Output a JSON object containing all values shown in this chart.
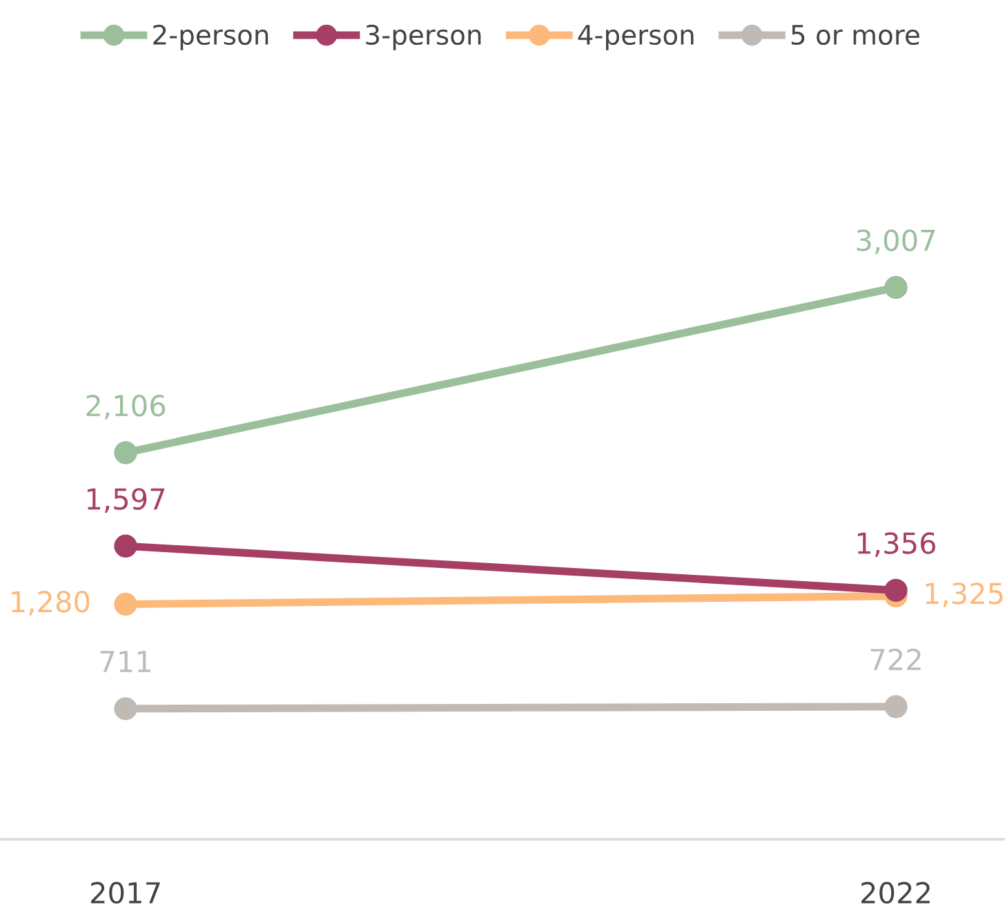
{
  "chart_data": {
    "type": "line",
    "categories": [
      "2017",
      "2022"
    ],
    "series": [
      {
        "name": "2-person",
        "color": "#9bbf9b",
        "values": [
          2106,
          3007
        ],
        "value_labels": [
          "2,106",
          "3,007"
        ]
      },
      {
        "name": "3-person",
        "color": "#a63f66",
        "values": [
          1597,
          1356
        ],
        "value_labels": [
          "1,597",
          "1,356"
        ]
      },
      {
        "name": "4-person",
        "color": "#fdb97a",
        "values": [
          1280,
          1325
        ],
        "value_labels": [
          "1,280",
          "1,325"
        ]
      },
      {
        "name": "5 or more",
        "color": "#c1bab4",
        "values": [
          711,
          722
        ],
        "value_labels": [
          "711",
          "722"
        ]
      }
    ],
    "tick_labels": "x",
    "marker": "circle",
    "line_style": "solid",
    "grid": false,
    "legend": "top"
  }
}
